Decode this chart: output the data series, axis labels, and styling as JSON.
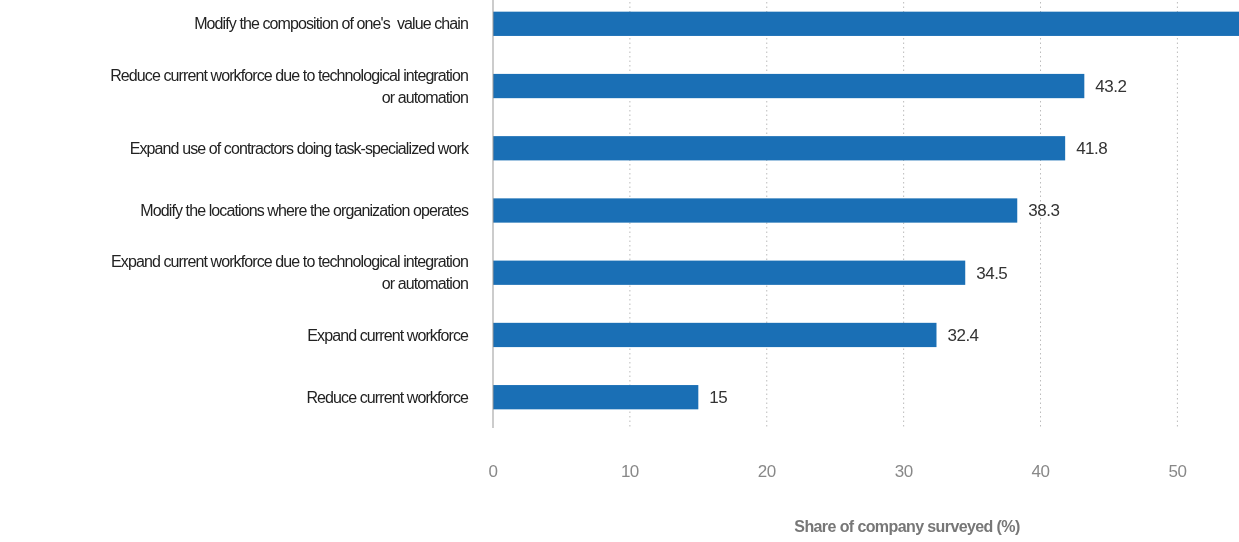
{
  "chart_data": {
    "type": "bar",
    "orientation": "horizontal",
    "xlabel": "Share of company surveyed (%)",
    "categories": [
      "Modify the composition of one's  value chain",
      "Reduce current workforce due to technological integration or automation",
      "Expand use of contractors doing task-specialized work",
      "Modify the locations where the organization operates",
      "Expand current workforce due to technological integration or automation",
      "Expand current workforce",
      "Reduce current workforce"
    ],
    "values": [
      54.5,
      43.2,
      41.8,
      38.3,
      34.5,
      32.4,
      15
    ],
    "value_labels": [
      null,
      "43.2",
      "41.8",
      "38.3",
      "34.5",
      "32.4",
      "15"
    ],
    "color": "#1a6fb5",
    "xlim": [
      0,
      54.5
    ],
    "xticks": [
      0,
      10,
      20,
      30,
      40,
      50
    ],
    "grid": "x"
  }
}
